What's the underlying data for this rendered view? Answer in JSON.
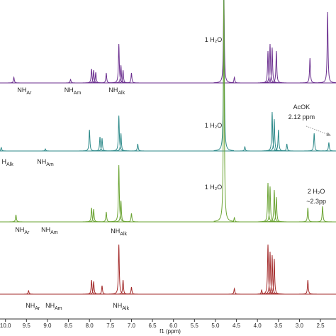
{
  "chart_data": {
    "type": "line",
    "xlabel": "f1 (ppm)",
    "xlim": [
      10.13,
      2.13
    ],
    "xticks": [
      {
        "value": 10,
        "label": "10.0"
      },
      9.5,
      {
        "value": 9,
        "label": "9.0"
      },
      8.5,
      {
        "value": 8,
        "label": "8.0"
      },
      7.5,
      {
        "value": 7,
        "label": "7.0"
      },
      6.5,
      {
        "value": 6,
        "label": "6.0"
      },
      5.5,
      {
        "value": 5,
        "label": "5.0"
      },
      4.5,
      {
        "value": 4,
        "label": "4.0"
      },
      3.5,
      {
        "value": 3,
        "label": "3.0"
      },
      2.5
    ],
    "series": [
      {
        "color": "#6b2f8f",
        "x": [
          9.8,
          8.45,
          7.95,
          7.9,
          7.85,
          7.6,
          7.3,
          7.25,
          7.2,
          7.0,
          4.8,
          4.55,
          3.75,
          3.7,
          3.65,
          3.55,
          2.75,
          2.33
        ],
        "values": [
          8,
          5,
          20,
          18,
          15,
          14,
          55,
          25,
          18,
          14,
          130,
          8,
          45,
          55,
          50,
          45,
          35,
          100
        ],
        "annotations": [
          {
            "text": "1 H₂O",
            "x": 5.05,
            "y": 60
          },
          {
            "text": "NH",
            "sub": "Ar",
            "x": 9.55,
            "y": -11
          },
          {
            "text": "NH",
            "sub": "Am",
            "x": 8.4,
            "y": -11
          },
          {
            "text": "NH",
            "sub": "Alk",
            "x": 7.35,
            "y": -11
          }
        ]
      },
      {
        "color": "#2e8a8a",
        "x": [
          10.1,
          9.05,
          8.0,
          7.75,
          7.7,
          7.3,
          7.25,
          6.85,
          4.8,
          4.3,
          3.65,
          3.6,
          3.5,
          3.3,
          2.65,
          2.3
        ],
        "values": [
          5,
          3,
          30,
          20,
          18,
          50,
          25,
          10,
          220,
          6,
          55,
          45,
          30,
          10,
          25,
          12
        ],
        "annotations": [
          {
            "text": "1 H₂O",
            "x": 5.05,
            "y": 35
          },
          {
            "text": "AcOK",
            "x": 2.95,
            "y": 61
          },
          {
            "text": "2.12 ppm",
            "x": 2.95,
            "y": 47
          },
          {
            "text": "H",
            "sub": "Alk",
            "x": 9.95,
            "y": -16
          },
          {
            "text": "NH",
            "sub": "Am",
            "x": 9.05,
            "y": -16
          }
        ]
      },
      {
        "color": "#6aa332",
        "x": [
          9.75,
          7.95,
          7.9,
          7.6,
          7.3,
          7.25,
          7.0,
          4.8,
          4.55,
          3.75,
          3.7,
          3.6,
          3.55,
          2.8,
          2.45
        ],
        "values": [
          10,
          20,
          18,
          14,
          80,
          30,
          12,
          320,
          6,
          55,
          50,
          45,
          35,
          20,
          22
        ],
        "annotations": [
          {
            "text": "1 H₂O",
            "x": 5.05,
            "y": 48
          },
          {
            "text": "2 H₂O",
            "x": 2.6,
            "y": 42
          },
          {
            "text": "~2.3pp",
            "x": 2.6,
            "y": 28
          },
          {
            "text": "NH",
            "sub": "Ar",
            "x": 9.6,
            "y": -12
          },
          {
            "text": "NH",
            "sub": "Am",
            "x": 8.95,
            "y": -12
          },
          {
            "text": "NH",
            "sub": "Alk",
            "x": 7.3,
            "y": -14
          }
        ]
      },
      {
        "color": "#a32a2a",
        "x": [
          9.45,
          7.95,
          7.9,
          7.7,
          7.3,
          7.2,
          7.0,
          4.55,
          3.9,
          3.75,
          3.7,
          3.65,
          3.6,
          2.8
        ],
        "values": [
          5,
          20,
          18,
          12,
          70,
          20,
          10,
          8,
          6,
          70,
          60,
          55,
          50,
          20
        ],
        "annotations": [
          {
            "text": "NH",
            "sub": "Ar",
            "x": 9.35,
            "y": -17
          },
          {
            "text": "NH",
            "sub": "Am",
            "x": 8.85,
            "y": -17
          },
          {
            "text": "NH",
            "sub": "Alk",
            "x": 7.25,
            "y": -17
          }
        ]
      }
    ]
  }
}
